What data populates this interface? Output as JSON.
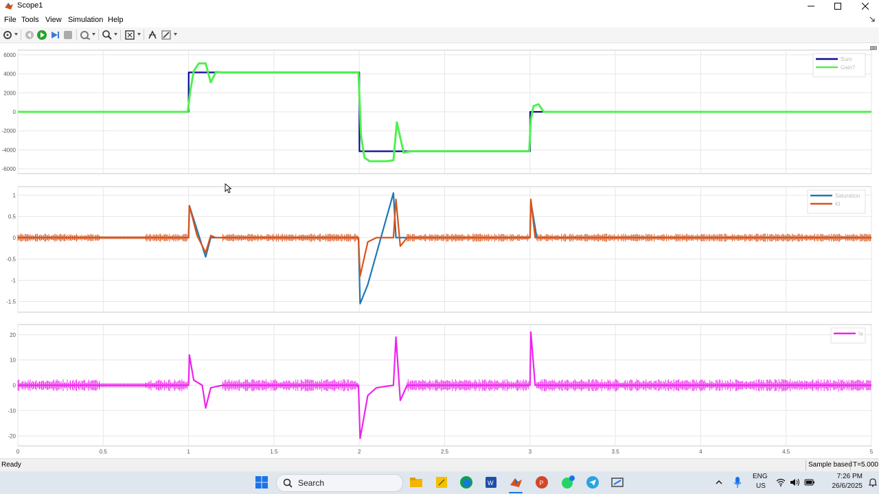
{
  "window": {
    "title": "Scope1"
  },
  "menu": [
    "File",
    "Tools",
    "Simulation",
    "Help"
  ],
  "toolbar": {
    "icons": [
      "settings-gear-icon",
      "step-back-icon",
      "run-icon",
      "step-forward-icon",
      "stop-icon",
      "signal-highlight-icon",
      "zoom-icon",
      "zoom-fit-icon",
      "cursor-measure-icon",
      "style-brush-icon"
    ]
  },
  "colors": {
    "sum": "#0a0a96",
    "gain7": "#4ff04f",
    "saturation": "#1f77b4",
    "ki": "#d95319",
    "ia": "#ee22ee",
    "grid": "#e6e6e6",
    "axis": "#c8c8c8"
  },
  "chart_data": [
    {
      "type": "line",
      "xlim": [
        0,
        5
      ],
      "ylim": [
        -6500,
        6500
      ],
      "yticks": [
        6000,
        4000,
        2000,
        0,
        -2000,
        -4000,
        -6000
      ],
      "ytick_labels": [
        "6000",
        "4000",
        "2000",
        "0",
        "-2000",
        "-4000",
        "-6000"
      ],
      "grid": true,
      "legend": "top-right",
      "series": [
        {
          "name": "Sum",
          "color": "#0a0a96",
          "x": [
            0,
            1,
            1.001,
            2,
            2.001,
            3,
            3.001,
            5
          ],
          "y": [
            0,
            0,
            4150,
            4150,
            -4150,
            -4150,
            0,
            0
          ]
        },
        {
          "name": "Gain7",
          "color": "#4ff04f",
          "x": [
            0,
            0.995,
            1.01,
            1.03,
            1.06,
            1.1,
            1.13,
            1.16,
            1.2,
            1.5,
            1.995,
            2.01,
            2.03,
            2.06,
            2.1,
            2.16,
            2.2,
            2.22,
            2.26,
            2.3,
            2.6,
            2.995,
            3.005,
            3.02,
            3.05,
            3.08,
            3.15,
            5
          ],
          "y": [
            0,
            0,
            2200,
            4300,
            5100,
            5100,
            3100,
            4200,
            4150,
            4150,
            4150,
            -2500,
            -4800,
            -5200,
            -5200,
            -5200,
            -5100,
            -1100,
            -4300,
            -4150,
            -4150,
            -4150,
            -800,
            600,
            800,
            0,
            0,
            0
          ]
        }
      ]
    },
    {
      "type": "line",
      "xlim": [
        0,
        5
      ],
      "ylim": [
        -1.75,
        1.2
      ],
      "yticks": [
        1,
        0.5,
        0,
        -0.5,
        -1,
        -1.5
      ],
      "ytick_labels": [
        "1",
        "0.5",
        "0",
        "-0.5",
        "-1",
        "-1.5"
      ],
      "grid": true,
      "legend": "top-right",
      "series": [
        {
          "name": "Saturation",
          "color": "#1f77b4",
          "x": [
            0,
            1,
            1.005,
            1.1,
            1.13,
            1.2,
            1.5,
            1.995,
            2.005,
            2.05,
            2.2,
            2.215,
            2.25,
            3,
            3.005,
            3.04,
            5
          ],
          "y": [
            0,
            0,
            0.75,
            -0.45,
            0,
            0,
            0,
            0,
            -1.55,
            -1.1,
            1.05,
            0,
            0,
            0,
            0.85,
            0,
            0
          ]
        },
        {
          "name": "KI",
          "color": "#d95319",
          "x": [
            0,
            1,
            1.005,
            1.05,
            1.1,
            1.13,
            1.16,
            1.2,
            1.995,
            2.005,
            2.05,
            2.1,
            2.2,
            2.215,
            2.24,
            2.28,
            3,
            3.005,
            3.03,
            5
          ],
          "y": [
            0,
            0,
            0.75,
            0.05,
            -0.35,
            0.05,
            0,
            0,
            0,
            -0.9,
            -0.1,
            0,
            0,
            0.9,
            -0.2,
            0,
            0,
            0.9,
            0,
            0
          ]
        }
      ]
    },
    {
      "type": "line",
      "xlim": [
        0,
        5
      ],
      "ylim": [
        -24,
        24
      ],
      "yticks": [
        20,
        10,
        0,
        -10,
        -20
      ],
      "ytick_labels": [
        "20",
        "10",
        "0",
        "-10",
        "-20"
      ],
      "xticks": [
        0,
        0.5,
        1,
        1.5,
        2,
        2.5,
        3,
        3.5,
        4,
        4.5,
        5
      ],
      "xtick_labels": [
        "0",
        "0.5",
        "1",
        "1.5",
        "2",
        "2.5",
        "3",
        "3.5",
        "4",
        "4.5",
        "5"
      ],
      "grid": true,
      "legend": "top-right",
      "series": [
        {
          "name": "Ia",
          "color": "#ee22ee",
          "x": [
            0,
            1,
            1.005,
            1.03,
            1.08,
            1.1,
            1.13,
            1.2,
            1.995,
            2.005,
            2.05,
            2.1,
            2.2,
            2.215,
            2.24,
            2.28,
            3,
            3.005,
            3.03,
            5
          ],
          "y": [
            0,
            0,
            12,
            2,
            0,
            -9,
            -1,
            0,
            0,
            -21,
            -4,
            -1,
            0,
            19,
            -6,
            0,
            0,
            21,
            0,
            0
          ]
        }
      ]
    }
  ],
  "status": {
    "ready": "Ready",
    "mode": "Sample based",
    "time": "T=5.000"
  },
  "taskbar": {
    "search": "Search",
    "lang": "ENG",
    "region": "US",
    "time": "7:26 PM",
    "date": "26/6/2025"
  }
}
